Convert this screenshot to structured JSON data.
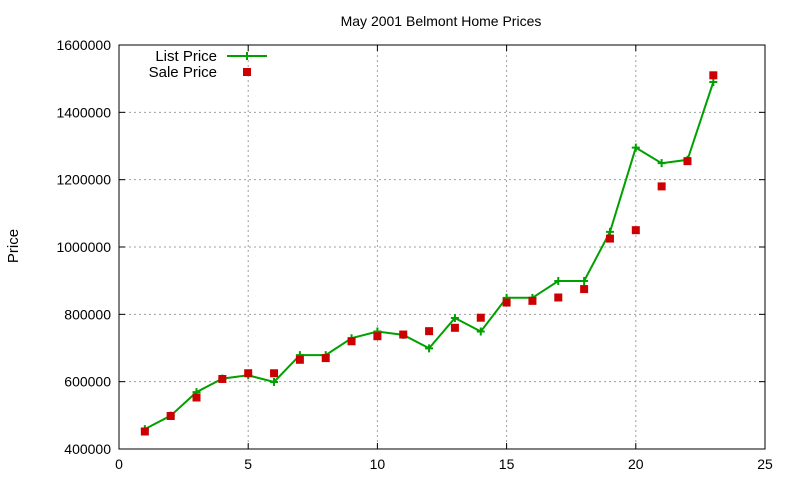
{
  "chart_data": {
    "type": "line",
    "title": "May 2001 Belmont Home Prices",
    "xlabel": "",
    "ylabel": "Price",
    "xlim": [
      0,
      25
    ],
    "ylim": [
      400000,
      1600000
    ],
    "x_ticks": [
      0,
      5,
      10,
      15,
      20,
      25
    ],
    "y_ticks": [
      400000,
      600000,
      800000,
      1000000,
      1200000,
      1400000,
      1600000
    ],
    "x_tick_labels": [
      "0",
      "5",
      "10",
      "15",
      "20",
      "25"
    ],
    "y_tick_labels": [
      "400000",
      "600000",
      "800000",
      "1000000",
      "1200000",
      "1400000",
      "1600000"
    ],
    "grid": true,
    "legend_position": "top-left",
    "series": [
      {
        "name": "List Price",
        "style": "line-with-plus-markers",
        "color": "#00a000",
        "points": [
          [
            1,
            459000
          ],
          [
            2,
            499000
          ],
          [
            3,
            569000
          ],
          [
            4,
            609000
          ],
          [
            5,
            619000
          ],
          [
            6,
            599000
          ],
          [
            7,
            679000
          ],
          [
            8,
            679000
          ],
          [
            9,
            729000
          ],
          [
            10,
            749000
          ],
          [
            11,
            739000
          ],
          [
            12,
            699000
          ],
          [
            13,
            789000
          ],
          [
            14,
            749000
          ],
          [
            15,
            849000
          ],
          [
            16,
            849000
          ],
          [
            17,
            899000
          ],
          [
            18,
            899000
          ],
          [
            19,
            1045000
          ],
          [
            20,
            1295000
          ],
          [
            21,
            1249000
          ],
          [
            22,
            1259000
          ],
          [
            23,
            1490000
          ]
        ]
      },
      {
        "name": "Sale Price",
        "style": "square-markers",
        "color": "#cc0000",
        "points": [
          [
            1,
            452000
          ],
          [
            2,
            498000
          ],
          [
            3,
            553000
          ],
          [
            4,
            608000
          ],
          [
            5,
            625000
          ],
          [
            6,
            625000
          ],
          [
            7,
            665000
          ],
          [
            8,
            670000
          ],
          [
            9,
            720000
          ],
          [
            10,
            735000
          ],
          [
            11,
            740000
          ],
          [
            12,
            750000
          ],
          [
            13,
            760000
          ],
          [
            14,
            790000
          ],
          [
            15,
            835000
          ],
          [
            16,
            840000
          ],
          [
            17,
            850000
          ],
          [
            18,
            875000
          ],
          [
            19,
            1025000
          ],
          [
            20,
            1050000
          ],
          [
            21,
            1180000
          ],
          [
            22,
            1255000
          ],
          [
            23,
            1510000
          ]
        ]
      }
    ]
  }
}
